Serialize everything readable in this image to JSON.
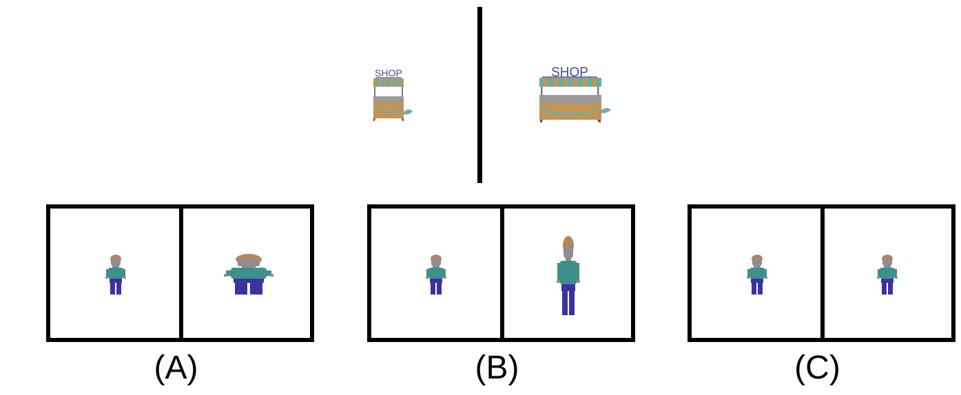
{
  "scene": {
    "shop_small": {
      "sign_text": "SHOP"
    },
    "shop_large": {
      "sign_text": "SHOP"
    }
  },
  "options": [
    {
      "label": "(A)",
      "right_figure": "wide-figure-icon"
    },
    {
      "label": "(B)",
      "right_figure": "tall-figure-icon"
    },
    {
      "label": "(C)",
      "right_figure": "normal-figure-icon"
    }
  ],
  "colors": {
    "hair": "#b5855a",
    "skin": "#8e8e8e",
    "shirt": "#3f8f8a",
    "pants": "#3a33a0",
    "sign": "#4a4a8c",
    "stall_wood": "#c49358",
    "awning_teal": "#5fb0a8",
    "awning_tan": "#c4935a"
  }
}
